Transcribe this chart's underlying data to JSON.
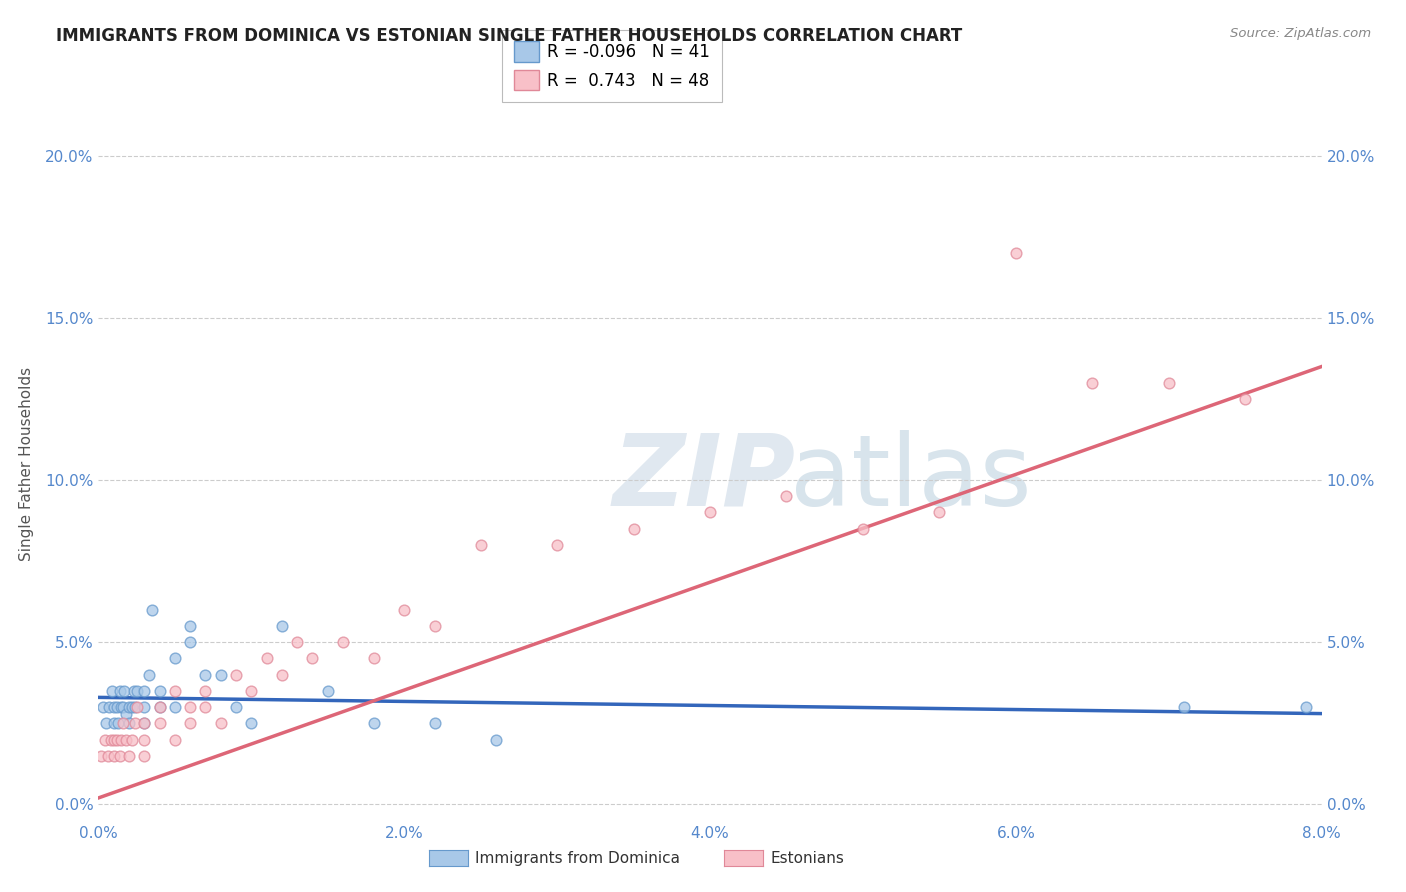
{
  "title": "IMMIGRANTS FROM DOMINICA VS ESTONIAN SINGLE FATHER HOUSEHOLDS CORRELATION CHART",
  "source": "Source: ZipAtlas.com",
  "ylabel": "Single Father Households",
  "xlim": [
    0.0,
    0.08
  ],
  "ylim": [
    -0.005,
    0.215
  ],
  "xticks": [
    0.0,
    0.02,
    0.04,
    0.06,
    0.08
  ],
  "xtick_labels": [
    "0.0%",
    "2.0%",
    "4.0%",
    "6.0%",
    "8.0%"
  ],
  "yticks": [
    0.0,
    0.05,
    0.1,
    0.15,
    0.2
  ],
  "ytick_labels": [
    "0.0%",
    "5.0%",
    "10.0%",
    "15.0%",
    "20.0%"
  ],
  "series1_label": "Immigrants from Dominica",
  "series1_color": "#a8c8e8",
  "series1_edge": "#6699cc",
  "series1_line": "#3366bb",
  "series1_R": "-0.096",
  "series1_N": "41",
  "series2_label": "Estonians",
  "series2_color": "#f8c0c8",
  "series2_edge": "#e08898",
  "series2_line": "#dd6677",
  "series2_R": "0.743",
  "series2_N": "48",
  "blue_scatter_x": [
    0.0003,
    0.0005,
    0.0007,
    0.0009,
    0.001,
    0.001,
    0.0012,
    0.0013,
    0.0014,
    0.0015,
    0.0016,
    0.0017,
    0.0018,
    0.002,
    0.002,
    0.0022,
    0.0023,
    0.0024,
    0.0025,
    0.003,
    0.003,
    0.003,
    0.0033,
    0.0035,
    0.004,
    0.004,
    0.005,
    0.005,
    0.006,
    0.006,
    0.007,
    0.008,
    0.009,
    0.01,
    0.012,
    0.015,
    0.018,
    0.022,
    0.026,
    0.071,
    0.079
  ],
  "blue_scatter_y": [
    0.03,
    0.025,
    0.03,
    0.035,
    0.025,
    0.03,
    0.03,
    0.025,
    0.035,
    0.03,
    0.03,
    0.035,
    0.028,
    0.025,
    0.03,
    0.03,
    0.035,
    0.03,
    0.035,
    0.025,
    0.03,
    0.035,
    0.04,
    0.06,
    0.03,
    0.035,
    0.03,
    0.045,
    0.05,
    0.055,
    0.04,
    0.04,
    0.03,
    0.025,
    0.055,
    0.035,
    0.025,
    0.025,
    0.02,
    0.03,
    0.03
  ],
  "pink_scatter_x": [
    0.0002,
    0.0004,
    0.0006,
    0.0008,
    0.001,
    0.001,
    0.0012,
    0.0014,
    0.0015,
    0.0016,
    0.0018,
    0.002,
    0.0022,
    0.0024,
    0.0025,
    0.003,
    0.003,
    0.003,
    0.004,
    0.004,
    0.005,
    0.005,
    0.006,
    0.006,
    0.007,
    0.007,
    0.008,
    0.009,
    0.01,
    0.011,
    0.012,
    0.013,
    0.014,
    0.016,
    0.018,
    0.02,
    0.022,
    0.025,
    0.03,
    0.035,
    0.04,
    0.045,
    0.05,
    0.055,
    0.06,
    0.065,
    0.07,
    0.075
  ],
  "pink_scatter_y": [
    0.015,
    0.02,
    0.015,
    0.02,
    0.015,
    0.02,
    0.02,
    0.015,
    0.02,
    0.025,
    0.02,
    0.015,
    0.02,
    0.025,
    0.03,
    0.02,
    0.025,
    0.015,
    0.025,
    0.03,
    0.02,
    0.035,
    0.025,
    0.03,
    0.03,
    0.035,
    0.025,
    0.04,
    0.035,
    0.045,
    0.04,
    0.05,
    0.045,
    0.05,
    0.045,
    0.06,
    0.055,
    0.08,
    0.08,
    0.085,
    0.09,
    0.095,
    0.085,
    0.09,
    0.17,
    0.13,
    0.13,
    0.125
  ],
  "blue_line_x": [
    0.0,
    0.08
  ],
  "blue_line_y": [
    0.033,
    0.028
  ],
  "pink_line_x": [
    0.0,
    0.08
  ],
  "pink_line_y": [
    0.002,
    0.135
  ]
}
